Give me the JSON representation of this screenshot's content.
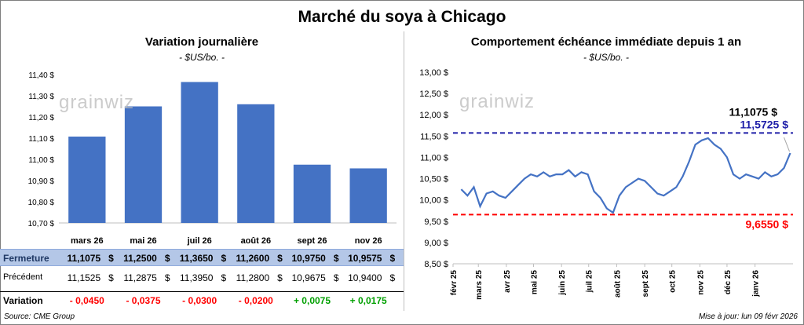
{
  "title": "Marché du soya à Chicago",
  "source": "Source: CME Group",
  "updated": "Mise à jour: lun 09 févr 2026",
  "watermark": "grainwiz",
  "chart_data": [
    {
      "type": "bar",
      "title": "Variation journalière",
      "unit": "- $US/bo. -",
      "categories": [
        "mars 26",
        "mai 26",
        "juil 26",
        "août 26",
        "sept 26",
        "nov 26"
      ],
      "values": [
        11.1075,
        11.25,
        11.365,
        11.26,
        10.975,
        10.9575
      ],
      "ylim": [
        10.7,
        11.4
      ],
      "yticks": [
        "10,70 $",
        "10,80 $",
        "10,90 $",
        "11,00 $",
        "11,10 $",
        "11,20 $",
        "11,30 $",
        "11,40 $"
      ],
      "color": "#4472c4",
      "grid": false
    },
    {
      "type": "line",
      "title": "Comportement échéance immédiate depuis 1 an",
      "unit": "- $US/bo. -",
      "ylim": [
        8.5,
        13.0
      ],
      "yticks": [
        "8,50 $",
        "9,00 $",
        "9,50 $",
        "10,00 $",
        "10,50 $",
        "11,00 $",
        "11,50 $",
        "12,00 $",
        "12,50 $",
        "13,00 $"
      ],
      "xticks": [
        "févr 25",
        "mars 25",
        "avr 25",
        "mai 25",
        "juin 25",
        "juil 25",
        "août 25",
        "sept 25",
        "oct 25",
        "nov 25",
        "déc 25",
        "janv 26"
      ],
      "x": [
        "2025-02-10",
        "2025-02-17",
        "2025-02-24",
        "2025-03-03",
        "2025-03-10",
        "2025-03-17",
        "2025-03-24",
        "2025-03-31",
        "2025-04-07",
        "2025-04-14",
        "2025-04-21",
        "2025-04-28",
        "2025-05-05",
        "2025-05-12",
        "2025-05-19",
        "2025-05-26",
        "2025-06-02",
        "2025-06-09",
        "2025-06-16",
        "2025-06-23",
        "2025-06-30",
        "2025-07-07",
        "2025-07-14",
        "2025-07-21",
        "2025-07-28",
        "2025-08-04",
        "2025-08-11",
        "2025-08-18",
        "2025-08-25",
        "2025-09-01",
        "2025-09-08",
        "2025-09-15",
        "2025-09-22",
        "2025-09-29",
        "2025-10-06",
        "2025-10-13",
        "2025-10-20",
        "2025-10-27",
        "2025-11-03",
        "2025-11-10",
        "2025-11-17",
        "2025-11-24",
        "2025-12-01",
        "2025-12-08",
        "2025-12-15",
        "2025-12-22",
        "2025-12-29",
        "2026-01-05",
        "2026-01-12",
        "2026-01-19",
        "2026-01-26",
        "2026-02-02",
        "2026-02-09"
      ],
      "values": [
        10.25,
        10.1,
        10.3,
        9.85,
        10.15,
        10.2,
        10.1,
        10.05,
        10.2,
        10.35,
        10.5,
        10.6,
        10.55,
        10.65,
        10.55,
        10.6,
        10.6,
        10.7,
        10.55,
        10.65,
        10.6,
        10.2,
        10.05,
        9.8,
        9.7,
        10.1,
        10.3,
        10.4,
        10.5,
        10.45,
        10.3,
        10.15,
        10.1,
        10.2,
        10.3,
        10.55,
        10.9,
        11.3,
        11.4,
        11.45,
        11.3,
        11.2,
        11.0,
        10.6,
        10.5,
        10.6,
        10.55,
        10.5,
        10.65,
        10.55,
        10.6,
        10.75,
        11.1
      ],
      "reference_lines": [
        {
          "label": "11,5725 $",
          "value": 11.5725,
          "color": "#1f1fa8"
        },
        {
          "label": "9,6550 $",
          "value": 9.655,
          "color": "#ff0000"
        }
      ],
      "last_value_label": "11,1075 $",
      "last_value": 11.1075,
      "color": "#4472c4",
      "grid": false
    }
  ],
  "table": {
    "row_labels": {
      "close": "Fermeture",
      "prev": "Précédent",
      "var": "Variation"
    },
    "close": [
      "11,1075",
      "11,2500",
      "11,3650",
      "11,2600",
      "10,9750",
      "10,9575"
    ],
    "prev": [
      "11,1525",
      "11,2875",
      "11,3950",
      "11,2800",
      "10,9675",
      "10,9400"
    ],
    "var": [
      "- 0,0450",
      "- 0,0375",
      "- 0,0300",
      "- 0,0200",
      "+ 0,0075",
      "+ 0,0175"
    ],
    "currency": "$"
  }
}
